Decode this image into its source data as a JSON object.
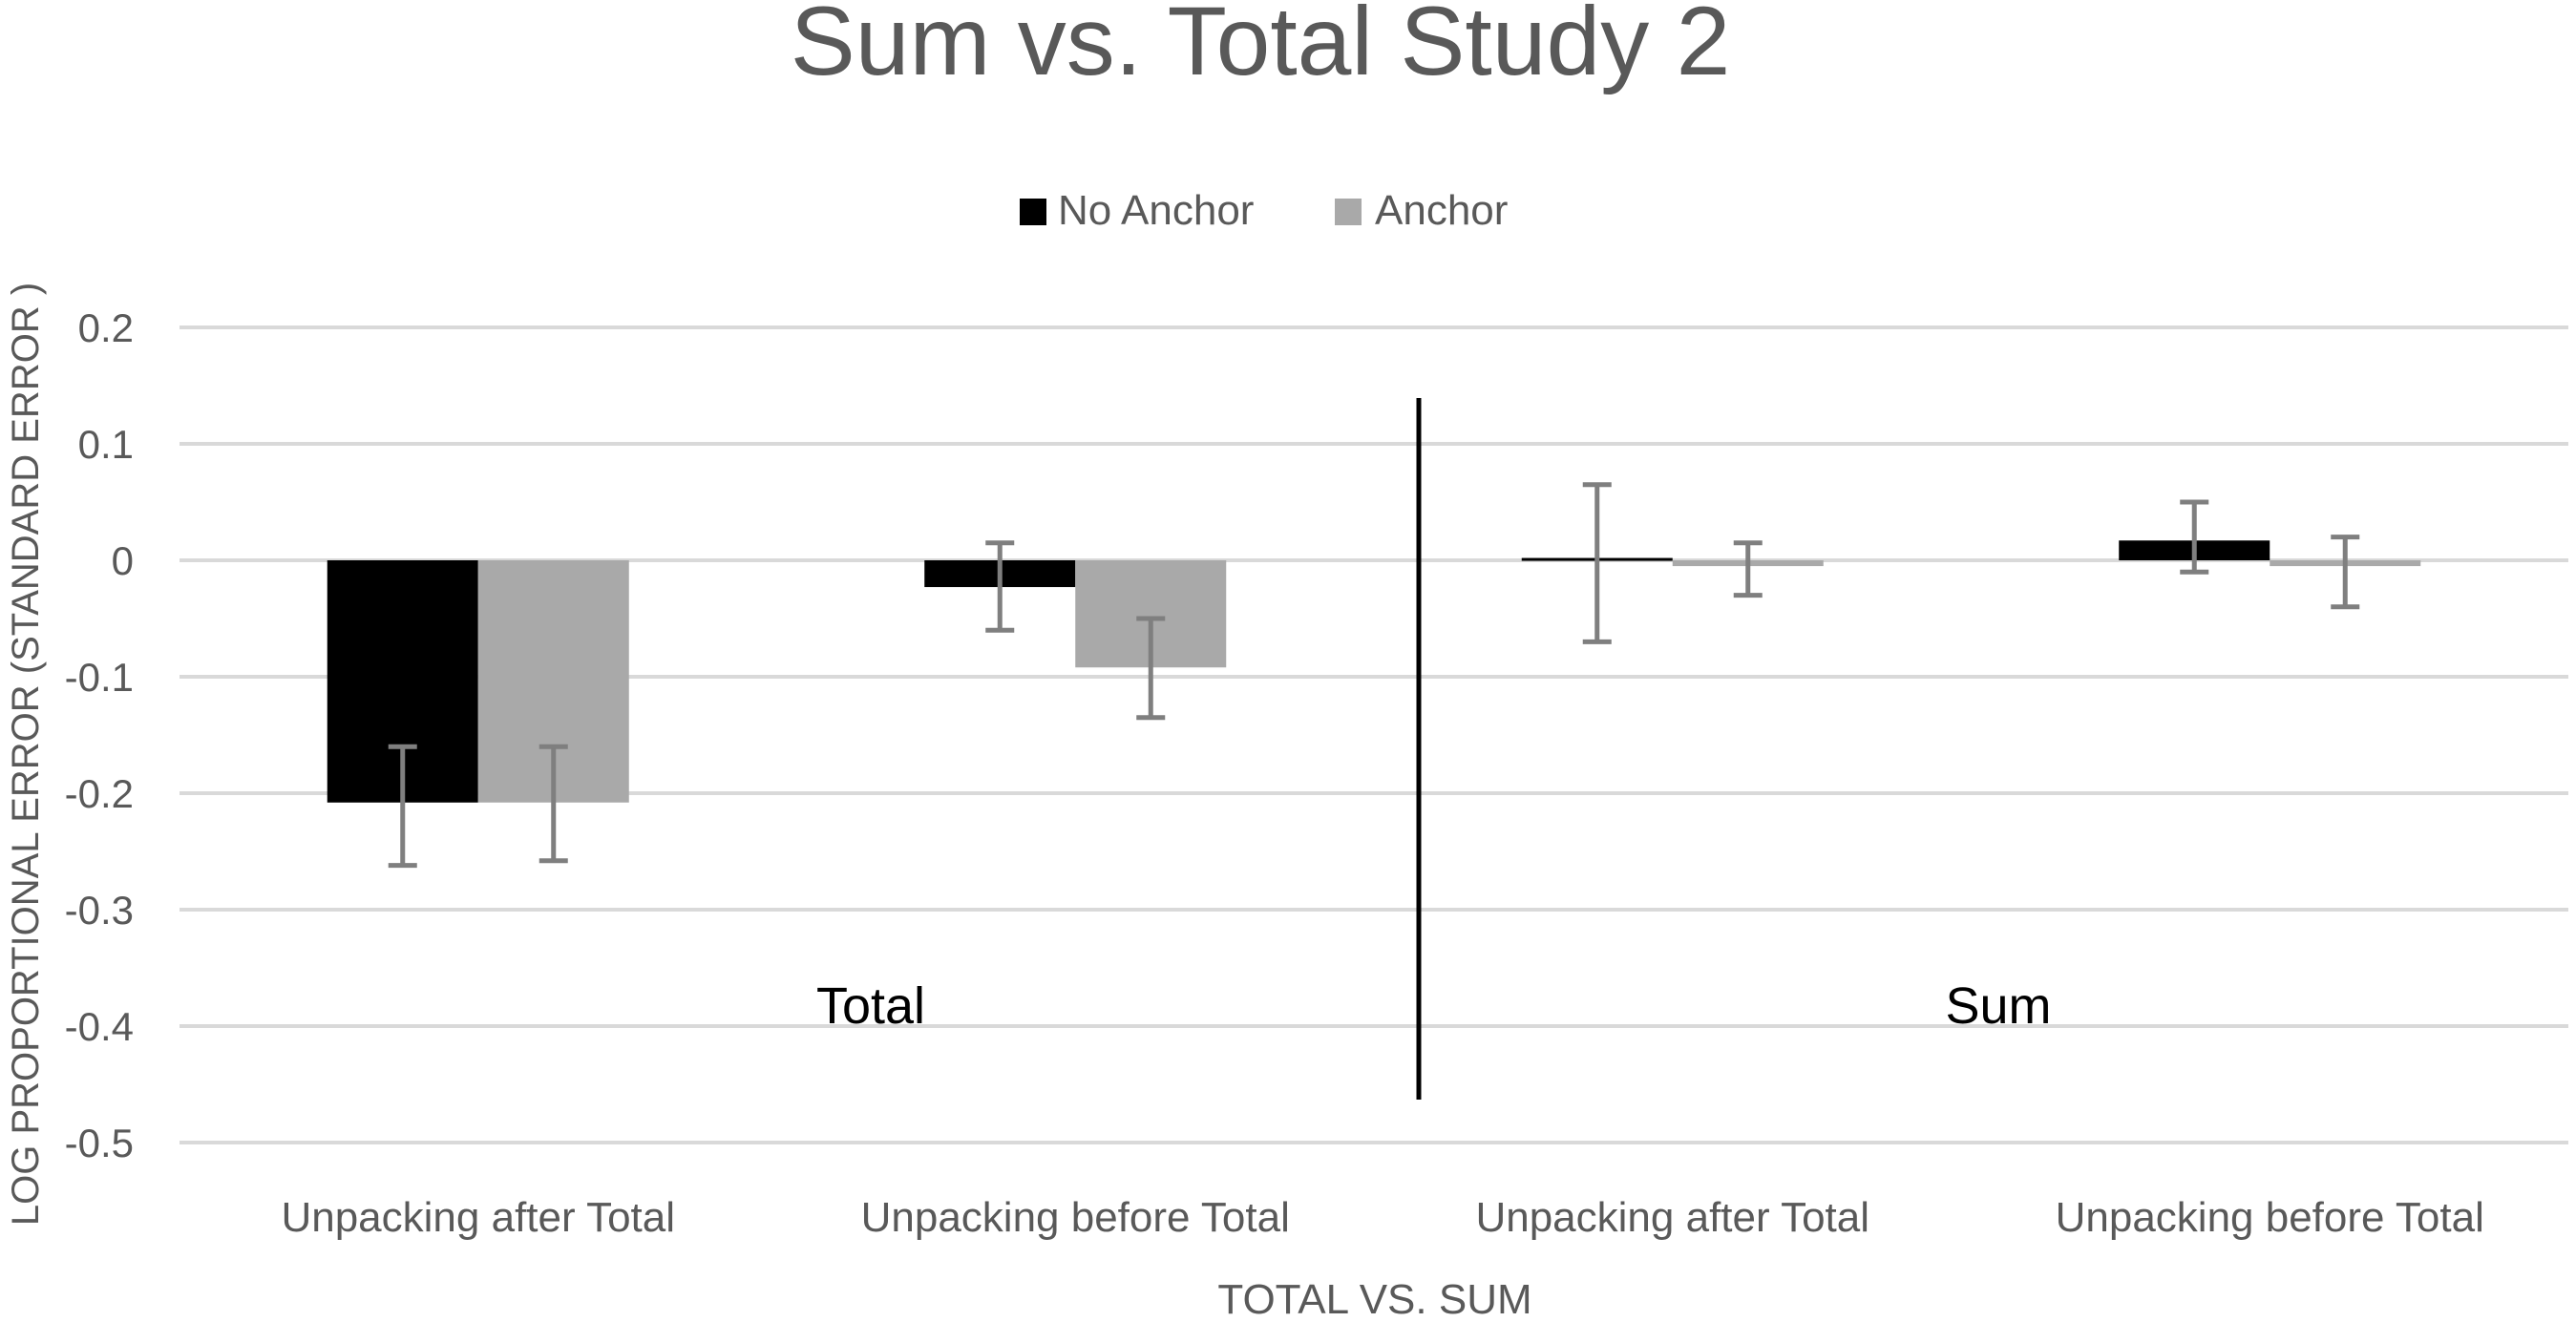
{
  "chart_data": {
    "type": "bar",
    "title": "Sum vs. Total Study 2",
    "xlabel": "TOTAL VS. SUM",
    "ylabel": "LOG PROPORTIONAL ERROR (STANDARD ERROR )",
    "ylim": [
      -0.5,
      0.2
    ],
    "yticks": [
      0.2,
      0.1,
      0,
      -0.1,
      -0.2,
      -0.3,
      -0.4,
      -0.5
    ],
    "ytick_labels": [
      "0.2",
      "0.1",
      "0",
      "-0.1",
      "-0.2",
      "-0.3",
      "-0.4",
      "-0.5"
    ],
    "grid": true,
    "legend_position": "top-center",
    "categories": [
      "Unpacking after Total",
      "Unpacking before Total",
      "Unpacking after Total",
      "Unpacking before Total"
    ],
    "groups": [
      {
        "label": "Total",
        "categories": [
          0,
          1
        ]
      },
      {
        "label": "Sum",
        "categories": [
          2,
          3
        ]
      }
    ],
    "series": [
      {
        "name": "No Anchor",
        "color": "#000000",
        "values": [
          -0.208,
          -0.023,
          0.002,
          0.017
        ],
        "error_low": [
          -0.262,
          -0.06,
          -0.07,
          -0.01
        ],
        "error_high": [
          -0.16,
          0.015,
          0.065,
          0.05
        ]
      },
      {
        "name": "Anchor",
        "color": "#a9a9a9",
        "values": [
          -0.208,
          -0.092,
          -0.005,
          -0.005
        ],
        "error_low": [
          -0.258,
          -0.135,
          -0.03,
          -0.04
        ],
        "error_high": [
          -0.16,
          -0.05,
          0.015,
          0.02
        ]
      }
    ],
    "error_bar_color": "#7f7f7f",
    "divider": "between Total and Sum groups"
  }
}
